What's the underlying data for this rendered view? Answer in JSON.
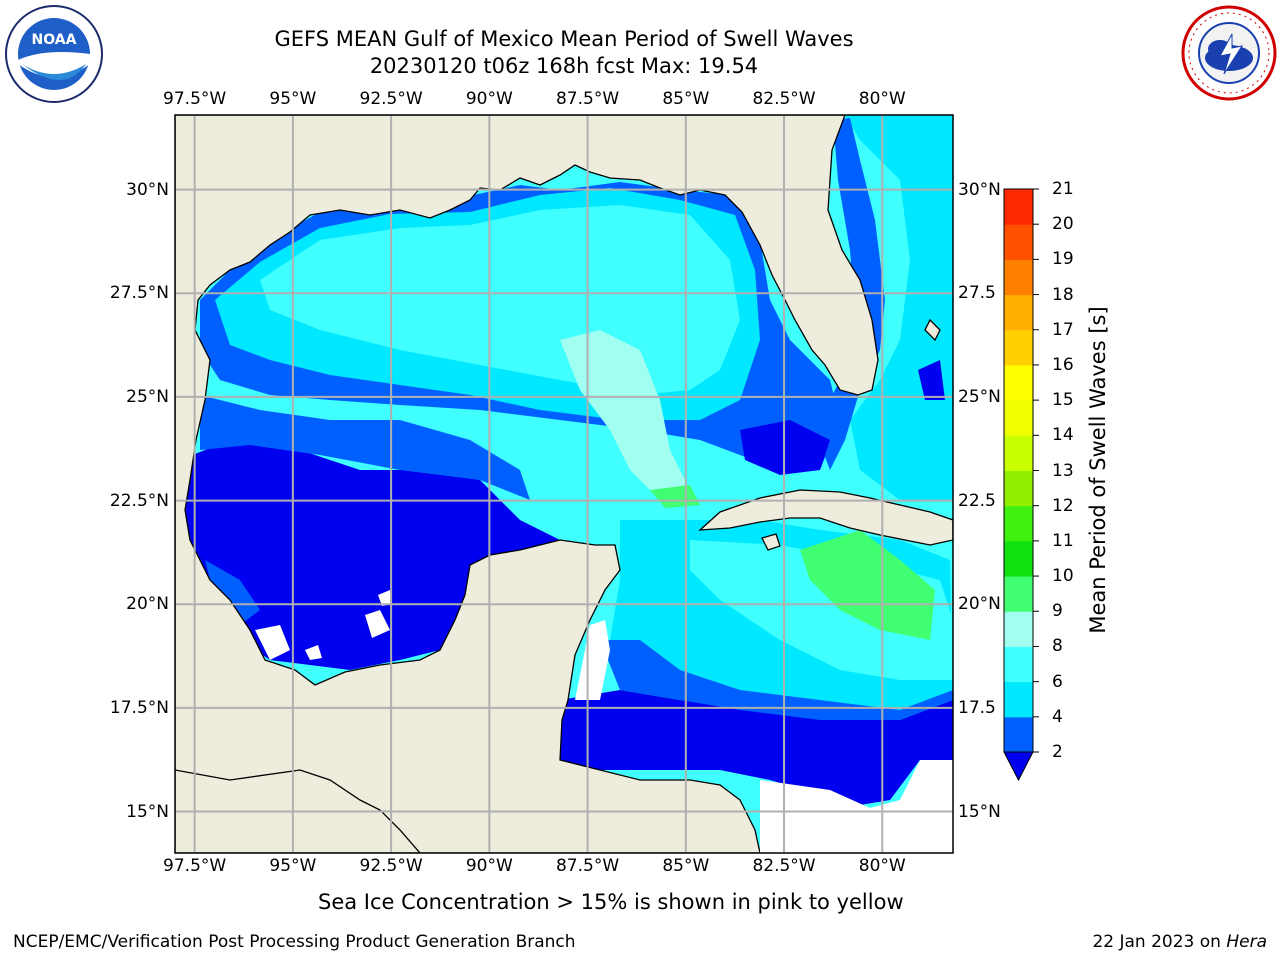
{
  "title": {
    "line1": "GEFS MEAN Gulf of Mexico Mean Period of Swell Waves",
    "line2": "20230120 t06z 168h fcst   Max: 19.54"
  },
  "logos": {
    "left": {
      "name": "noaa-logo",
      "text": "NOAA",
      "ring_text": "NATIONAL OCEANIC AND ATMOSPHERIC ADMINISTRATION · U.S. DEPARTMENT OF COMMERCE"
    },
    "right": {
      "name": "nws-logo",
      "ring_text": "NATIONAL WEATHER SERVICE"
    }
  },
  "axes": {
    "lon_ticks_top": [
      "97.5°W",
      "95°W",
      "92.5°W",
      "90°W",
      "87.5°W",
      "85°W",
      "82.5°W",
      "80°W"
    ],
    "lon_ticks_bottom": [
      "97.5°W",
      "95°W",
      "92.5°W",
      "90°W",
      "87.5°W",
      "85°W",
      "82.5°W",
      "80°W"
    ],
    "lat_ticks_left": [
      "30°N",
      "27.5°N",
      "25°N",
      "22.5°N",
      "20°N",
      "17.5°N",
      "15°N"
    ],
    "lat_ticks_right": [
      "30°N",
      "27.5",
      "25°N",
      "22.5",
      "20°N",
      "17.5",
      "15°N"
    ],
    "lon_range": [
      -98.0,
      -78.2
    ],
    "lat_range": [
      14.0,
      31.8
    ]
  },
  "colorbar": {
    "label": "Mean Period of Swell Waves [s]",
    "ticks": [
      "21",
      "20",
      "19",
      "18",
      "17",
      "16",
      "15",
      "14",
      "13",
      "12",
      "11",
      "10",
      "9",
      "8",
      "6",
      "4",
      "2"
    ],
    "levels": [
      2,
      4,
      6,
      8,
      9,
      10,
      11,
      12,
      13,
      14,
      15,
      16,
      17,
      18,
      19,
      20,
      21
    ],
    "colors": [
      "#0000f0",
      "#0060ff",
      "#00e8ff",
      "#40ffff",
      "#a0fff0",
      "#40ff70",
      "#10e010",
      "#40f010",
      "#90f000",
      "#c8ff00",
      "#f0ff00",
      "#ffff00",
      "#ffd000",
      "#ffb000",
      "#ff8000",
      "#ff5000",
      "#ff2800",
      "#ff0000"
    ],
    "extend": "min"
  },
  "map": {
    "land_color": "#eeecdc",
    "grid_color": "#b0b0b0",
    "max_value": 19.54
  },
  "notes": {
    "ice": "Sea Ice Concentration > 15% is shown in pink to yellow"
  },
  "footer": {
    "left": "NCEP/EMC/Verification Post Processing Product Generation Branch",
    "right_date": "22 Jan 2023 on ",
    "right_host": "Hera"
  }
}
